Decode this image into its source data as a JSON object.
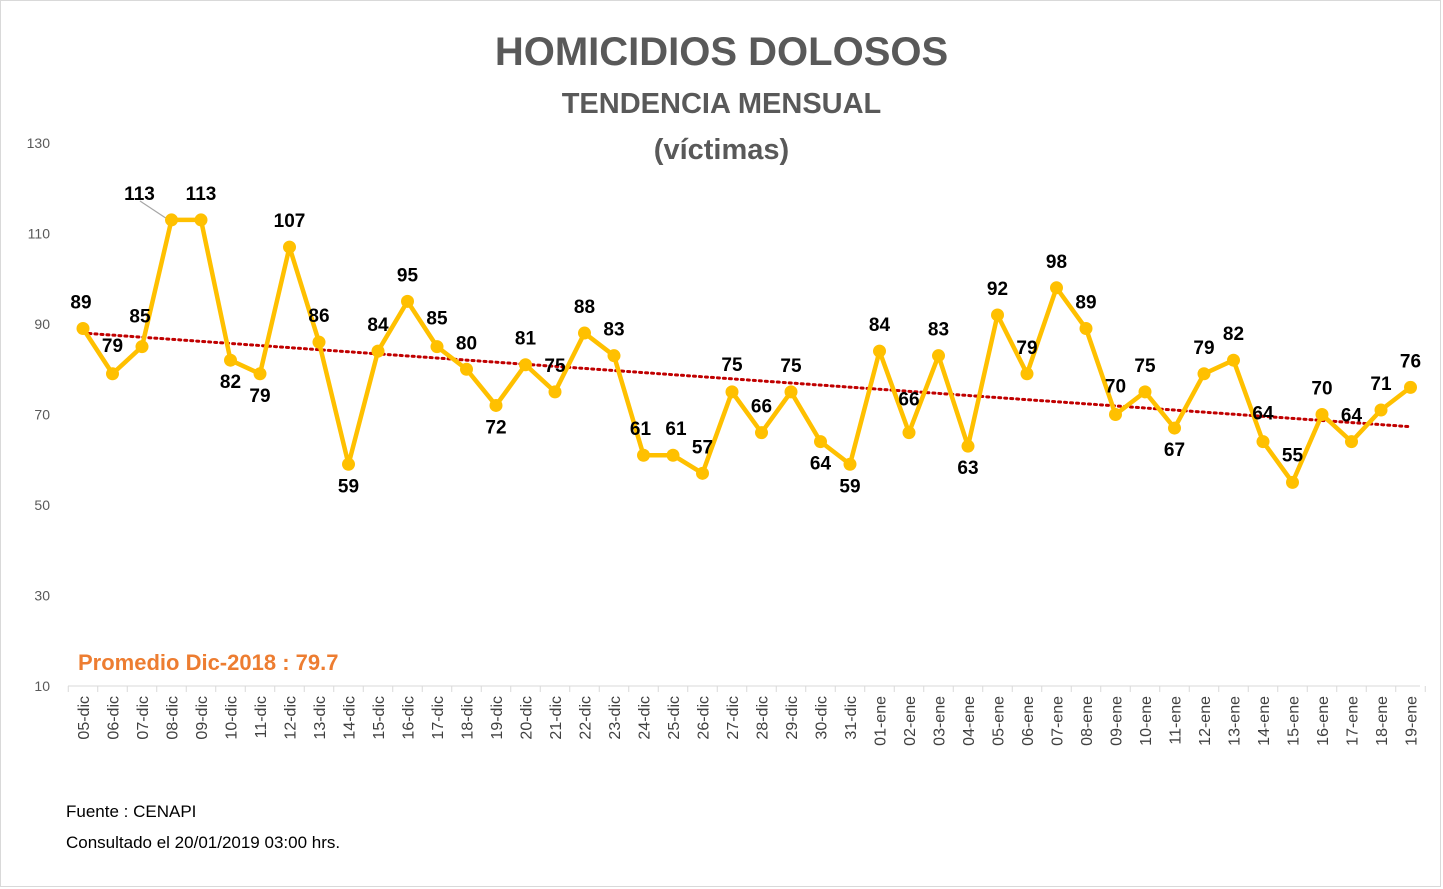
{
  "chart_data": {
    "type": "line",
    "title": "HOMICIDIOS DOLOSOS",
    "subtitle": "TENDENCIA MENSUAL",
    "subtitle2": "(víctimas)",
    "ylim": [
      10,
      130
    ],
    "yticks": [
      10,
      30,
      50,
      70,
      90,
      110,
      130
    ],
    "grid": false,
    "categories": [
      "05-dic",
      "06-dic",
      "07-dic",
      "08-dic",
      "09-dic",
      "10-dic",
      "11-dic",
      "12-dic",
      "13-dic",
      "14-dic",
      "15-dic",
      "16-dic",
      "17-dic",
      "18-dic",
      "19-dic",
      "20-dic",
      "21-dic",
      "22-dic",
      "23-dic",
      "24-dic",
      "25-dic",
      "26-dic",
      "27-dic",
      "28-dic",
      "29-dic",
      "30-dic",
      "31-dic",
      "01-ene",
      "02-ene",
      "03-ene",
      "04-ene",
      "05-ene",
      "06-ene",
      "07-ene",
      "08-ene",
      "09-ene",
      "10-ene",
      "11-ene",
      "12-ene",
      "13-ene",
      "14-ene",
      "15-ene",
      "16-ene",
      "17-ene",
      "18-ene",
      "19-ene"
    ],
    "series": [
      {
        "values": [
          89,
          79,
          85,
          113,
          113,
          82,
          79,
          107,
          86,
          59,
          84,
          95,
          85,
          80,
          72,
          81,
          75,
          88,
          83,
          61,
          61,
          57,
          75,
          66,
          75,
          64,
          59,
          84,
          66,
          83,
          63,
          92,
          79,
          98,
          89,
          70,
          75,
          67,
          79,
          82,
          64,
          55,
          70,
          64,
          71,
          76
        ]
      }
    ],
    "trendline": {
      "type": "linear",
      "start": 88.0,
      "end": 67.3
    },
    "colors": {
      "series": "#ffc000",
      "trend": "#c00000",
      "average_note": "#ed7d31"
    }
  },
  "annotations": {
    "average_note": "Promedio Dic-2018 : 79.7"
  },
  "footer": {
    "source": "Fuente : CENAPI",
    "consulted": "Consultado el 20/01/2019  03:00 hrs."
  }
}
